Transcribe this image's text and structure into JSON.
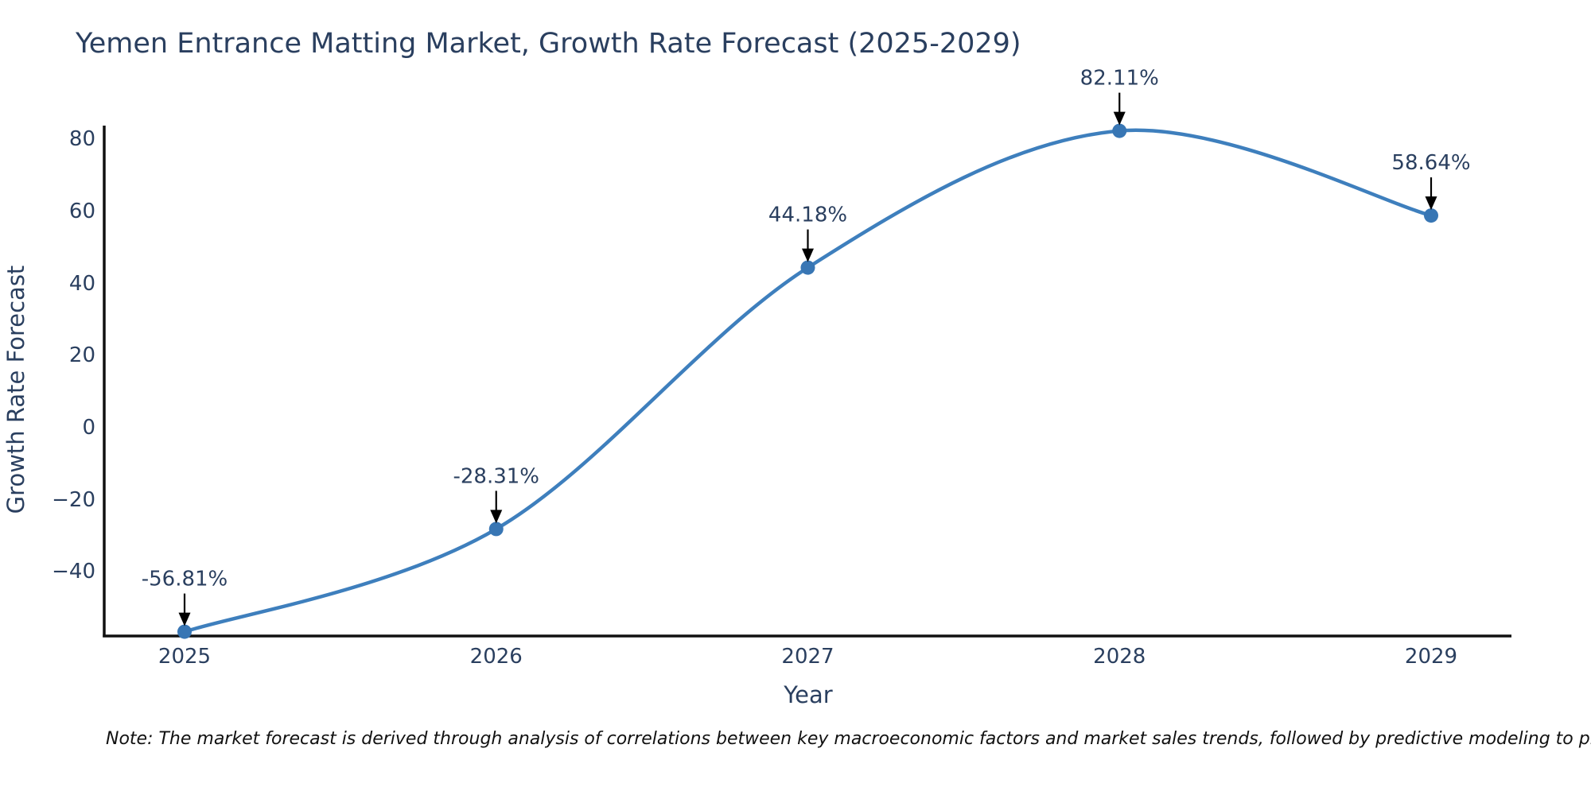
{
  "chart": {
    "title": "Yemen Entrance Matting Market, Growth Rate Forecast (2025-2029)"
  },
  "note": {
    "text": "Note: The market forecast is derived through analysis of correlations between key macroeconomic factors and market sales trends, followed by predictive modeling to project future sales"
  },
  "chart_data": {
    "type": "line",
    "title": "Yemen Entrance Matting Market, Growth Rate Forecast (2025-2029)",
    "xlabel": "Year",
    "ylabel": "Growth Rate Forecast",
    "categories": [
      "2025",
      "2026",
      "2027",
      "2028",
      "2029"
    ],
    "series": [
      {
        "name": "Growth Rate Forecast",
        "values": [
          -56.81,
          -28.31,
          44.18,
          82.11,
          58.64
        ]
      }
    ],
    "annotations": [
      "-56.81%",
      "-28.31%",
      "44.18%",
      "82.11%",
      "58.64%"
    ],
    "yticks": {
      "values": [
        80,
        60,
        40,
        20,
        0,
        -20,
        -40
      ],
      "labels": [
        "80",
        "60",
        "40",
        "20",
        "0",
        "−20",
        "−40"
      ]
    },
    "ylim": [
      -60,
      84
    ],
    "grid": false,
    "legend_position": "none",
    "line_style": "spline",
    "colors": {
      "line": "#3e7fbd",
      "marker": "#3876b4",
      "axis": "#101010",
      "text": "#2a3f5f",
      "annotation_arrow": "#000000"
    }
  }
}
